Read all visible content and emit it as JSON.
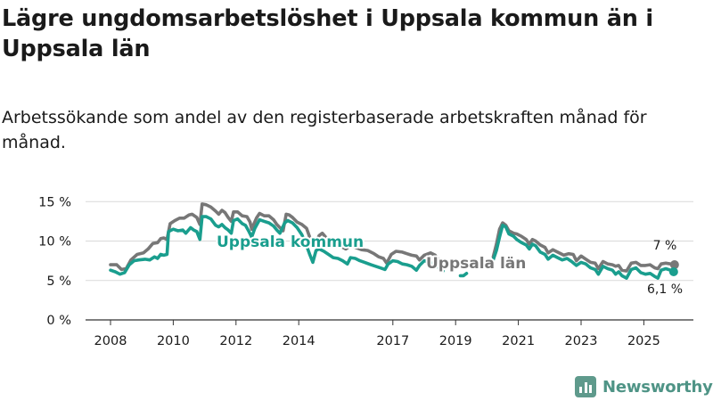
{
  "title": "Lägre ungdomsarbetslöshet i Uppsala kommun än i Uppsala län",
  "subtitle": "Arbetssökande som andel av den registerbaserade arbetskraften månad för månad.",
  "brand": {
    "name": "Newsworthy",
    "icon": "bar-chart-icon"
  },
  "chart_data": {
    "type": "line",
    "title": "Lägre ungdomsarbetslöshet i Uppsala kommun än i Uppsala län",
    "subtitle": "Arbetssökande som andel av den registerbaserade arbetskraften månad för månad.",
    "xlabel": "",
    "ylabel": "",
    "x_range": [
      2007.5,
      2026.4
    ],
    "ylim": [
      0,
      16
    ],
    "y_ticks": [
      0,
      5,
      10,
      15
    ],
    "y_tick_labels": [
      "0 %",
      "5 %",
      "10 %",
      "15 %"
    ],
    "x_ticks": [
      2008,
      2010,
      2012,
      2014,
      2017,
      2019,
      2021,
      2023,
      2025
    ],
    "x_tick_labels": [
      "2008",
      "2010",
      "2012",
      "2014",
      "2017",
      "2019",
      "2021",
      "2023",
      "2025"
    ],
    "grid": true,
    "series": [
      {
        "name": "Uppsala län",
        "color": "#777777",
        "label": "Uppsala län",
        "end_label": "7 %",
        "segments": [
          [
            [
              2008.0,
              7.0
            ],
            [
              2008.2,
              7.0
            ],
            [
              2008.35,
              6.4
            ],
            [
              2008.5,
              6.5
            ],
            [
              2008.65,
              7.6
            ],
            [
              2008.85,
              8.3
            ],
            [
              2009.05,
              8.5
            ],
            [
              2009.2,
              9.0
            ],
            [
              2009.35,
              9.7
            ],
            [
              2009.5,
              9.8
            ],
            [
              2009.6,
              10.3
            ],
            [
              2009.7,
              10.4
            ],
            [
              2009.8,
              10.2
            ],
            [
              2009.9,
              12.2
            ],
            [
              2010.05,
              12.6
            ],
            [
              2010.2,
              12.9
            ],
            [
              2010.35,
              12.9
            ],
            [
              2010.5,
              13.3
            ],
            [
              2010.6,
              13.4
            ],
            [
              2010.75,
              13.0
            ],
            [
              2010.85,
              12.1
            ],
            [
              2010.92,
              14.7
            ],
            [
              2011.05,
              14.6
            ],
            [
              2011.2,
              14.3
            ],
            [
              2011.35,
              13.8
            ],
            [
              2011.45,
              13.4
            ],
            [
              2011.55,
              13.9
            ],
            [
              2011.65,
              13.6
            ],
            [
              2011.75,
              13.0
            ],
            [
              2011.85,
              12.5
            ],
            [
              2011.92,
              13.7
            ],
            [
              2012.05,
              13.7
            ],
            [
              2012.2,
              13.2
            ],
            [
              2012.35,
              13.1
            ],
            [
              2012.45,
              12.4
            ],
            [
              2012.5,
              11.5
            ],
            [
              2012.55,
              12.0
            ],
            [
              2012.65,
              12.9
            ],
            [
              2012.75,
              13.5
            ],
            [
              2012.9,
              13.2
            ],
            [
              2013.05,
              13.2
            ],
            [
              2013.2,
              12.7
            ],
            [
              2013.3,
              12.1
            ],
            [
              2013.4,
              11.7
            ],
            [
              2013.5,
              11.3
            ],
            [
              2013.6,
              13.4
            ],
            [
              2013.7,
              13.3
            ],
            [
              2013.8,
              13.0
            ],
            [
              2013.95,
              12.4
            ],
            [
              2014.1,
              12.1
            ],
            [
              2014.25,
              11.6
            ],
            [
              2014.35,
              10.5
            ],
            [
              2014.45,
              9.8
            ],
            [
              2014.55,
              9.9
            ],
            [
              2014.65,
              10.7
            ],
            [
              2014.75,
              11.0
            ],
            [
              2014.9,
              10.3
            ],
            [
              2015.05,
              10.0
            ],
            [
              2015.2,
              9.6
            ],
            [
              2015.35,
              9.3
            ],
            [
              2015.5,
              9.0
            ],
            [
              2015.65,
              9.4
            ],
            [
              2015.8,
              9.2
            ],
            [
              2016.0,
              8.9
            ],
            [
              2016.2,
              8.8
            ],
            [
              2016.4,
              8.4
            ],
            [
              2016.55,
              8.0
            ],
            [
              2016.7,
              7.8
            ],
            [
              2016.8,
              7.2
            ],
            [
              2016.95,
              8.3
            ],
            [
              2017.1,
              8.7
            ],
            [
              2017.3,
              8.6
            ],
            [
              2017.45,
              8.4
            ],
            [
              2017.6,
              8.2
            ],
            [
              2017.75,
              8.1
            ],
            [
              2017.85,
              7.6
            ],
            [
              2018.0,
              8.2
            ],
            [
              2018.2,
              8.5
            ],
            [
              2018.35,
              8.2
            ],
            [
              2018.5,
              7.4
            ],
            [
              2018.6,
              7.0
            ]
          ],
          [
            [
              2020.2,
              8.0
            ],
            [
              2020.3,
              9.6
            ],
            [
              2020.4,
              11.5
            ],
            [
              2020.5,
              12.3
            ],
            [
              2020.6,
              12.0
            ],
            [
              2020.7,
              11.3
            ],
            [
              2020.85,
              11.0
            ],
            [
              2020.95,
              10.9
            ],
            [
              2021.1,
              10.6
            ],
            [
              2021.25,
              10.2
            ],
            [
              2021.35,
              9.6
            ],
            [
              2021.45,
              10.2
            ],
            [
              2021.55,
              10.0
            ],
            [
              2021.7,
              9.5
            ],
            [
              2021.85,
              9.2
            ],
            [
              2021.95,
              8.5
            ],
            [
              2022.1,
              8.9
            ],
            [
              2022.25,
              8.6
            ],
            [
              2022.45,
              8.2
            ],
            [
              2022.6,
              8.4
            ],
            [
              2022.75,
              8.3
            ],
            [
              2022.85,
              7.5
            ],
            [
              2023.0,
              8.1
            ],
            [
              2023.15,
              7.7
            ],
            [
              2023.3,
              7.3
            ],
            [
              2023.45,
              7.2
            ],
            [
              2023.55,
              6.5
            ],
            [
              2023.7,
              7.4
            ],
            [
              2023.85,
              7.1
            ],
            [
              2024.0,
              7.0
            ],
            [
              2024.1,
              6.8
            ],
            [
              2024.2,
              6.9
            ],
            [
              2024.3,
              6.3
            ],
            [
              2024.45,
              6.2
            ],
            [
              2024.6,
              7.2
            ],
            [
              2024.75,
              7.3
            ],
            [
              2024.9,
              6.9
            ],
            [
              2025.05,
              6.9
            ],
            [
              2025.2,
              7.0
            ],
            [
              2025.35,
              6.6
            ],
            [
              2025.45,
              6.5
            ],
            [
              2025.55,
              7.1
            ],
            [
              2025.7,
              7.2
            ],
            [
              2025.85,
              7.1
            ],
            [
              2025.95,
              7.0
            ]
          ]
        ]
      },
      {
        "name": "Uppsala kommun",
        "color": "#1a9e8e",
        "label": "Uppsala kommun",
        "end_label": "6,1 %",
        "segments": [
          [
            [
              2008.0,
              6.3
            ],
            [
              2008.15,
              6.1
            ],
            [
              2008.3,
              5.8
            ],
            [
              2008.45,
              6.0
            ],
            [
              2008.6,
              7.0
            ],
            [
              2008.75,
              7.5
            ],
            [
              2008.9,
              7.6
            ],
            [
              2009.1,
              7.7
            ],
            [
              2009.25,
              7.6
            ],
            [
              2009.4,
              8.0
            ],
            [
              2009.5,
              7.8
            ],
            [
              2009.6,
              8.3
            ],
            [
              2009.7,
              8.2
            ],
            [
              2009.8,
              8.3
            ],
            [
              2009.85,
              11.2
            ],
            [
              2010.0,
              11.5
            ],
            [
              2010.15,
              11.3
            ],
            [
              2010.3,
              11.4
            ],
            [
              2010.4,
              11.0
            ],
            [
              2010.55,
              11.7
            ],
            [
              2010.65,
              11.4
            ],
            [
              2010.75,
              11.2
            ],
            [
              2010.85,
              10.2
            ],
            [
              2010.92,
              13.1
            ],
            [
              2011.05,
              13.1
            ],
            [
              2011.2,
              12.8
            ],
            [
              2011.35,
              12.0
            ],
            [
              2011.45,
              11.8
            ],
            [
              2011.55,
              12.1
            ],
            [
              2011.65,
              11.7
            ],
            [
              2011.75,
              11.4
            ],
            [
              2011.85,
              11.0
            ],
            [
              2011.92,
              12.6
            ],
            [
              2012.05,
              12.8
            ],
            [
              2012.2,
              12.2
            ],
            [
              2012.3,
              12.0
            ],
            [
              2012.4,
              11.3
            ],
            [
              2012.5,
              10.5
            ],
            [
              2012.6,
              11.6
            ],
            [
              2012.75,
              12.7
            ],
            [
              2012.9,
              12.5
            ],
            [
              2013.05,
              12.3
            ],
            [
              2013.2,
              11.9
            ],
            [
              2013.3,
              11.4
            ],
            [
              2013.4,
              11.0
            ],
            [
              2013.55,
              12.3
            ],
            [
              2013.65,
              12.6
            ],
            [
              2013.8,
              12.3
            ],
            [
              2013.95,
              11.7
            ],
            [
              2014.1,
              10.8
            ],
            [
              2014.25,
              9.4
            ],
            [
              2014.35,
              8.3
            ],
            [
              2014.45,
              7.3
            ],
            [
              2014.55,
              8.8
            ],
            [
              2014.65,
              9.0
            ],
            [
              2014.8,
              8.7
            ],
            [
              2014.95,
              8.3
            ],
            [
              2015.1,
              7.9
            ],
            [
              2015.25,
              7.8
            ],
            [
              2015.4,
              7.5
            ],
            [
              2015.55,
              7.1
            ],
            [
              2015.65,
              7.9
            ],
            [
              2015.8,
              7.8
            ],
            [
              2015.95,
              7.5
            ],
            [
              2016.1,
              7.3
            ],
            [
              2016.3,
              7.0
            ],
            [
              2016.45,
              6.8
            ],
            [
              2016.6,
              6.6
            ],
            [
              2016.75,
              6.4
            ],
            [
              2016.85,
              7.1
            ],
            [
              2017.0,
              7.5
            ],
            [
              2017.15,
              7.4
            ],
            [
              2017.3,
              7.1
            ],
            [
              2017.45,
              7.0
            ],
            [
              2017.6,
              6.8
            ],
            [
              2017.75,
              6.3
            ],
            [
              2017.85,
              6.9
            ],
            [
              2018.0,
              7.5
            ],
            [
              2018.2,
              7.3
            ],
            [
              2018.35,
              6.9
            ],
            [
              2018.5,
              6.6
            ],
            [
              2018.6,
              6.2
            ]
          ],
          [
            [
              2019.15,
              5.6
            ],
            [
              2019.25,
              5.6
            ],
            [
              2019.35,
              5.9
            ]
          ],
          [
            [
              2020.2,
              7.6
            ],
            [
              2020.3,
              8.8
            ],
            [
              2020.4,
              10.5
            ],
            [
              2020.5,
              12.0
            ],
            [
              2020.6,
              11.8
            ],
            [
              2020.7,
              10.9
            ],
            [
              2020.85,
              10.6
            ],
            [
              2020.95,
              10.2
            ],
            [
              2021.1,
              9.8
            ],
            [
              2021.25,
              9.5
            ],
            [
              2021.35,
              9.0
            ],
            [
              2021.45,
              9.6
            ],
            [
              2021.55,
              9.4
            ],
            [
              2021.7,
              8.6
            ],
            [
              2021.85,
              8.3
            ],
            [
              2021.95,
              7.7
            ],
            [
              2022.1,
              8.2
            ],
            [
              2022.25,
              7.9
            ],
            [
              2022.4,
              7.6
            ],
            [
              2022.55,
              7.8
            ],
            [
              2022.7,
              7.4
            ],
            [
              2022.85,
              6.9
            ],
            [
              2023.0,
              7.3
            ],
            [
              2023.15,
              7.1
            ],
            [
              2023.3,
              6.6
            ],
            [
              2023.45,
              6.4
            ],
            [
              2023.55,
              5.8
            ],
            [
              2023.7,
              6.8
            ],
            [
              2023.85,
              6.5
            ],
            [
              2024.0,
              6.3
            ],
            [
              2024.1,
              5.8
            ],
            [
              2024.2,
              6.1
            ],
            [
              2024.3,
              5.6
            ],
            [
              2024.45,
              5.3
            ],
            [
              2024.6,
              6.4
            ],
            [
              2024.75,
              6.6
            ],
            [
              2024.9,
              6.0
            ],
            [
              2025.05,
              5.8
            ],
            [
              2025.2,
              5.9
            ],
            [
              2025.35,
              5.5
            ],
            [
              2025.45,
              5.3
            ],
            [
              2025.55,
              6.3
            ],
            [
              2025.7,
              6.5
            ],
            [
              2025.85,
              6.3
            ],
            [
              2025.95,
              6.1
            ]
          ]
        ]
      }
    ]
  }
}
